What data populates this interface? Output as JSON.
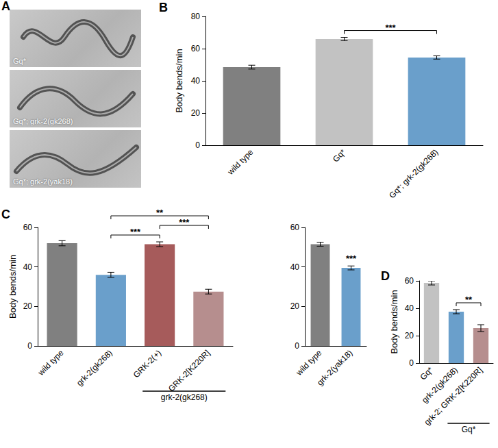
{
  "image_panel": {
    "panel": "A",
    "captions": [
      "Gq*",
      "Gq*; grk-2(gk268)",
      "Gq*; grk-2(yak18)"
    ]
  },
  "chart_data": [
    {
      "type": "bar",
      "panel": "B",
      "y_label": "Body bends/min",
      "categories": [
        "wild type",
        "Gq*",
        "Gq*; grk-2(gk268)"
      ],
      "values": [
        48.5,
        66,
        54.5
      ],
      "errors": [
        1.2,
        1.0,
        1.0
      ],
      "colors": [
        "#808080",
        "#c2c2c2",
        "#6a9fcb"
      ],
      "ylim": [
        0,
        80
      ],
      "yticks": [
        0,
        20,
        40,
        60,
        80
      ],
      "grid": false,
      "significance": [
        {
          "between": [
            "Gq*",
            "Gq*; grk-2(gk268)"
          ],
          "label": "***"
        }
      ]
    },
    {
      "type": "bar",
      "panel": "C",
      "y_label": "Body bends/min",
      "categories": [
        "wild type",
        "grk-2(gk268)",
        "GRK-2(+)",
        "GRK-2[K220R]"
      ],
      "values": [
        52,
        36,
        51.5,
        27.5
      ],
      "errors": [
        1.3,
        1.3,
        1.2,
        1.2
      ],
      "colors": [
        "#808080",
        "#6a9fcb",
        "#a65b5b",
        "#b68e8e"
      ],
      "ylim": [
        0,
        60
      ],
      "yticks": [
        0,
        20,
        40,
        60
      ],
      "grid": false,
      "significance": [
        {
          "between": [
            "grk-2(gk268)",
            "GRK-2(+)"
          ],
          "label": "***"
        },
        {
          "between": [
            "grk-2(gk268)",
            "GRK-2[K220R]"
          ],
          "label": "**"
        },
        {
          "between": [
            "GRK-2(+)",
            "GRK-2[K220R]"
          ],
          "label": "***"
        }
      ],
      "groups": [
        {
          "label": "grk-2(gk268)",
          "categories": [
            "GRK-2(+)",
            "GRK-2[K220R]"
          ]
        }
      ]
    },
    {
      "type": "bar",
      "categories": [
        "wild type",
        "grk-2(yak18)"
      ],
      "values": [
        51.5,
        39.5
      ],
      "errors": [
        1.0,
        1.0
      ],
      "colors": [
        "#808080",
        "#6a9fcb"
      ],
      "ylim": [
        0,
        60
      ],
      "yticks": [
        0,
        20,
        40,
        60
      ],
      "grid": false,
      "significance": [
        {
          "between": [
            "grk-2(yak18)"
          ],
          "label": "***"
        }
      ]
    },
    {
      "type": "bar",
      "panel": "D",
      "y_label": "Body bends/min",
      "categories": [
        "Gq*",
        "grk-2(gk268)",
        "grk-2; GRK-2[K220R]"
      ],
      "values": [
        58.5,
        37.5,
        25.5
      ],
      "errors": [
        1.5,
        1.5,
        2.5
      ],
      "colors": [
        "#c2c2c2",
        "#6a9fcb",
        "#b68e8e"
      ],
      "ylim": [
        0,
        60
      ],
      "yticks": [
        0,
        20,
        40,
        60
      ],
      "grid": false,
      "significance": [
        {
          "between": [
            "grk-2(gk268)",
            "grk-2; GRK-2[K220R]"
          ],
          "label": "**"
        }
      ],
      "groups": [
        {
          "label": "Gq*",
          "categories": [
            "grk-2(gk268)",
            "grk-2; GRK-2[K220R]"
          ]
        }
      ]
    }
  ]
}
